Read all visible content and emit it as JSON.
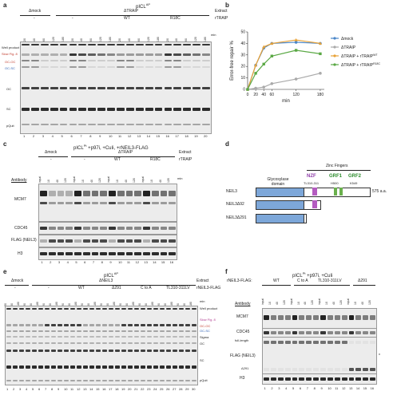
{
  "panel_a": {
    "label": "a",
    "substrate": "pICL",
    "substrate_sup": "AP",
    "extract_label": "Extract",
    "rtraip_label": "rTRAIP",
    "conditions": [
      "Δmock",
      "ΔTRAIP"
    ],
    "sub_conditions": [
      "-",
      "-",
      "WT",
      "R18C"
    ],
    "min_label": "min",
    "time_points": [
      "20",
      "40",
      "60",
      "120",
      "180"
    ],
    "side_labels": [
      "Well product",
      "Slow Fig. 8",
      "OC-OC",
      "OC-SC",
      "OC",
      "SC",
      "pQuit"
    ],
    "lane_numbers": [
      "1",
      "2",
      "3",
      "4",
      "5",
      "6",
      "7",
      "8",
      "9",
      "10",
      "11",
      "12",
      "13",
      "14",
      "15",
      "16",
      "17",
      "18",
      "19",
      "20"
    ]
  },
  "panel_b": {
    "label": "b"
  },
  "chart_data": {
    "type": "line",
    "xlabel": "min",
    "ylabel": "Error-free repair %",
    "x": [
      0,
      20,
      40,
      60,
      120,
      180
    ],
    "xticks": [
      "0",
      "20",
      "40",
      "60",
      "120",
      "180"
    ],
    "yticks": [
      "0",
      "10",
      "20",
      "30",
      "40",
      "50"
    ],
    "ylim": [
      0,
      50
    ],
    "xlim": [
      0,
      190
    ],
    "series": [
      {
        "name": "Δmock",
        "color": "#4a86c8",
        "marker": "circle",
        "values": [
          0,
          21,
          36,
          40,
          41,
          40
        ]
      },
      {
        "name": "ΔTRAIP",
        "color": "#aaaaaa",
        "marker": "circle",
        "values": [
          0,
          1,
          2,
          5,
          9,
          14
        ]
      },
      {
        "name": "ΔTRAIP + rTRAIP",
        "sup": "WT",
        "color": "#e8a237",
        "marker": "triangle",
        "values": [
          0,
          21,
          37,
          40,
          43,
          40
        ]
      },
      {
        "name": "ΔTRAIP + rTRAIP",
        "sup": "R18C",
        "color": "#5aa844",
        "marker": "square",
        "values": [
          0,
          14,
          22,
          29,
          34,
          31
        ]
      }
    ],
    "legend_position": "right"
  },
  "panel_c": {
    "label": "c",
    "title": "pICL",
    "title_sup": "Pt",
    "title_suffix": "+p97i, +CuIi, +rNEIL3-FLAG",
    "extract_label": "Extract",
    "rtraip_label": "rTRAIP",
    "conditions": [
      "Δmock",
      "ΔTRAIP"
    ],
    "sub_conditions": [
      "-",
      "-",
      "WT",
      "R18C"
    ],
    "antibody_label": "Antibody",
    "antibodies": [
      "MCM7",
      "CDC45",
      "FLAG (NEIL3)",
      "H3"
    ],
    "col_labels": [
      "input",
      "10",
      "40",
      "120"
    ],
    "min_label": "min",
    "lane_numbers": [
      "1",
      "2",
      "3",
      "4",
      "5",
      "6",
      "7",
      "8",
      "9",
      "10",
      "11",
      "12",
      "13",
      "14",
      "15",
      "16"
    ]
  },
  "panel_d": {
    "label": "d",
    "zinc_label": "Zinc Fingers",
    "domains": [
      "Glycosylase domain",
      "NZF",
      "GRF1",
      "GRF2"
    ],
    "nzf_residues": "TL310-311",
    "grf1_residue": "H500",
    "grf2_residue": "K549",
    "proteins": [
      "NEIL3",
      "NEIL3Δ92",
      "NEIL3Δ291"
    ],
    "length_label": "575 a.a.",
    "colors": {
      "glycosylase": "#7da7d9",
      "nzf": "#b45cc0",
      "grf": "#6ab04c"
    }
  },
  "panel_e": {
    "label": "e",
    "substrate": "pICL",
    "substrate_sup": "AP",
    "extract_label": "Extract",
    "flag_label": "rNEIL3-FLAG",
    "conditions": [
      "Δmock",
      "ΔNEIL3"
    ],
    "sub_conditions": [
      "-",
      "-",
      "WT",
      "Δ291",
      "C to A",
      "TL310-311LV"
    ],
    "side_labels": [
      "min",
      "Well product",
      "Slow Fig. 8",
      "OC-OC",
      "OC-SC",
      "Sigma",
      "OC",
      "SC",
      "pQuit"
    ],
    "lane_numbers": [
      "1",
      "2",
      "3",
      "4",
      "5",
      "6",
      "7",
      "8",
      "9",
      "10",
      "11",
      "12",
      "13",
      "14",
      "15",
      "16",
      "17",
      "18",
      "19",
      "20",
      "21",
      "22",
      "23",
      "24",
      "25",
      "26",
      "27",
      "28",
      "29",
      "30"
    ]
  },
  "panel_f": {
    "label": "f",
    "title": "pICL",
    "title_sup": "Pt",
    "title_suffix": "+p97i, +CuIi",
    "flag_label": "rNEIL3-FLAG:",
    "conditions": [
      "WT",
      "C to A",
      "TL310-311LV",
      "Δ291"
    ],
    "antibody_label": "Antibody",
    "antibodies": [
      "MCM7",
      "CDC45",
      "FLAG (NEIL3)",
      "H3"
    ],
    "extra_labels": [
      "full-length",
      "Δ291"
    ],
    "lane_numbers": [
      "1",
      "2",
      "3",
      "4",
      "5",
      "6",
      "7",
      "8",
      "9",
      "10",
      "11",
      "12",
      "13",
      "14",
      "15",
      "16"
    ]
  }
}
